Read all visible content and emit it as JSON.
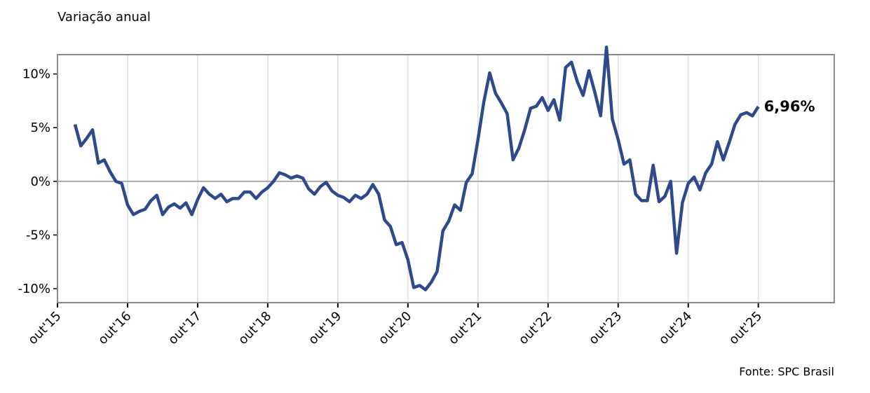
{
  "chart_data": {
    "type": "line",
    "y_label": "Variação anual",
    "source": "Fonte: SPC Brasil",
    "x": [
      3,
      4,
      5,
      6,
      7,
      8,
      9,
      10,
      11,
      12,
      13,
      14,
      15,
      16,
      17,
      18,
      19,
      20,
      21,
      22,
      23,
      24,
      25,
      26,
      27,
      28,
      29,
      30,
      31,
      32,
      33,
      34,
      35,
      36,
      37,
      38,
      39,
      40,
      41,
      42,
      43,
      44,
      45,
      46,
      47,
      48,
      49,
      50,
      51,
      52,
      53,
      54,
      55,
      56,
      57,
      58,
      59,
      60,
      61,
      62,
      63,
      64,
      65,
      66,
      67,
      68,
      69,
      70,
      71,
      72,
      73,
      74,
      75,
      76,
      77,
      78,
      79,
      80,
      81,
      82,
      83,
      84,
      85,
      86,
      87,
      88,
      89,
      90,
      91,
      92,
      93,
      94,
      95,
      96,
      97,
      98,
      99,
      100,
      101,
      102,
      103,
      104,
      105,
      106,
      107,
      108,
      109,
      110,
      111,
      112,
      113,
      114,
      115,
      116,
      117,
      118,
      119,
      120
    ],
    "series": [
      {
        "color": "#2e4a8b",
        "values": [
          5.3,
          3.3,
          4.0,
          4.8,
          1.7,
          2.0,
          0.9,
          0.0,
          -0.2,
          -2.2,
          -3.1,
          -2.8,
          -2.6,
          -1.8,
          -1.3,
          -3.1,
          -2.4,
          -2.1,
          -2.5,
          -2.0,
          -3.1,
          -1.7,
          -0.6,
          -1.2,
          -1.6,
          -1.2,
          -1.9,
          -1.6,
          -1.6,
          -1.0,
          -1.0,
          -1.6,
          -1.0,
          -0.6,
          0.0,
          0.8,
          0.6,
          0.3,
          0.5,
          0.3,
          -0.7,
          -1.2,
          -0.5,
          -0.1,
          -0.9,
          -1.3,
          -1.5,
          -1.9,
          -1.3,
          -1.6,
          -1.2,
          -0.3,
          -1.2,
          -3.6,
          -4.2,
          -5.9,
          -5.7,
          -7.3,
          -9.9,
          -9.7,
          -10.1,
          -9.4,
          -8.4,
          -4.6,
          -3.7,
          -2.2,
          -2.7,
          -0.1,
          0.7,
          3.9,
          7.4,
          10.1,
          8.2,
          7.3,
          6.3,
          2.0,
          3.1,
          4.8,
          6.8,
          7.0,
          7.8,
          6.6,
          7.6,
          5.7,
          10.6,
          11.1,
          9.3,
          8.0,
          10.3,
          8.3,
          6.1,
          12.5,
          5.8,
          3.9,
          1.6,
          2.0,
          -1.2,
          -1.8,
          -1.8,
          1.5,
          -1.9,
          -1.4,
          0.0,
          -6.7,
          -2.0,
          -0.2,
          0.4,
          -0.8,
          0.8,
          1.6,
          3.7,
          2.0,
          3.6,
          5.3,
          6.2,
          6.4,
          6.1,
          6.96
        ],
        "value_labels": [
          null,
          null,
          null,
          null,
          null,
          null,
          null,
          null,
          null,
          null,
          null,
          null,
          null,
          null,
          null,
          null,
          null,
          null,
          null,
          null,
          null,
          null,
          null,
          null,
          null,
          null,
          null,
          null,
          null,
          null,
          null,
          null,
          null,
          null,
          null,
          null,
          null,
          null,
          null,
          null,
          null,
          null,
          null,
          null,
          null,
          null,
          null,
          null,
          null,
          null,
          null,
          null,
          null,
          null,
          null,
          null,
          null,
          null,
          null,
          null,
          null,
          null,
          null,
          null,
          null,
          null,
          null,
          null,
          null,
          null,
          null,
          null,
          null,
          null,
          null,
          null,
          null,
          null,
          null,
          null,
          null,
          null,
          null,
          null,
          null,
          null,
          null,
          null,
          null,
          null,
          null,
          null,
          null,
          null,
          null,
          null,
          null,
          null,
          null,
          null,
          null,
          null,
          null,
          null,
          null,
          null,
          null,
          null,
          null,
          null,
          null,
          null,
          null,
          null,
          null,
          null,
          null,
          "6,96%"
        ]
      }
    ],
    "xlim": [
      0,
      133
    ],
    "xticks": [
      {
        "value": 0,
        "label": "out'15"
      },
      {
        "value": 12,
        "label": "out'16"
      },
      {
        "value": 24,
        "label": "out'17"
      },
      {
        "value": 36,
        "label": "out'18"
      },
      {
        "value": 48,
        "label": "out'19"
      },
      {
        "value": 60,
        "label": "out'20"
      },
      {
        "value": 72,
        "label": "out'21"
      },
      {
        "value": 84,
        "label": "out'22"
      },
      {
        "value": 96,
        "label": "out'23"
      },
      {
        "value": 108,
        "label": "out'24"
      },
      {
        "value": 120,
        "label": "out'25"
      }
    ],
    "ylim": [
      -11.3,
      11.8
    ],
    "yticks": [
      {
        "value": 10,
        "label": "10%"
      },
      {
        "value": 5,
        "label": "5%"
      },
      {
        "value": 0,
        "label": "0%"
      },
      {
        "value": -5,
        "label": "-5%"
      },
      {
        "value": -10,
        "label": "-10%"
      }
    ],
    "grid": "x"
  }
}
